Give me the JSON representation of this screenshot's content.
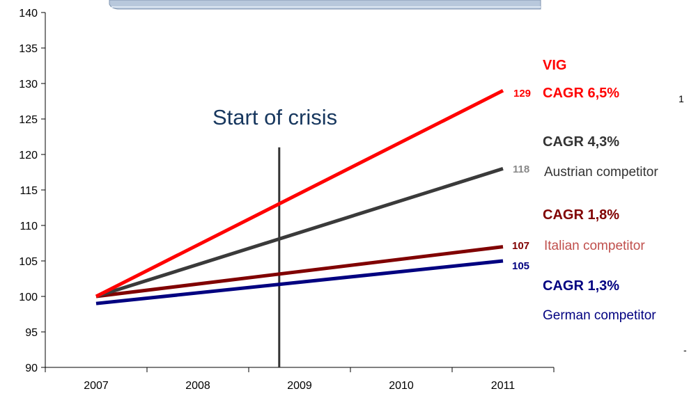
{
  "chart_data": {
    "type": "line",
    "categories": [
      "2007",
      "2008",
      "2009",
      "2010",
      "2011"
    ],
    "ylim": [
      90,
      140
    ],
    "yticks": [
      90,
      95,
      100,
      105,
      110,
      115,
      120,
      125,
      130,
      135,
      140
    ],
    "series": [
      {
        "name": "VIG",
        "color": "#ff0000",
        "start": 100,
        "end": 129,
        "end_label": "129",
        "cagr": "CAGR 6,5%"
      },
      {
        "name": "Austrian competitor",
        "color": "#3a3a3a",
        "label_color": "#888888",
        "name_color": "#333333",
        "start": 100,
        "end": 118,
        "end_label": "118",
        "cagr": "CAGR 4,3%"
      },
      {
        "name": "Italian competitor",
        "color": "#800000",
        "name_color": "#c0504d",
        "start": 100,
        "end": 107,
        "end_label": "107",
        "cagr": "CAGR 1,8%"
      },
      {
        "name": "German competitor",
        "color": "#000080",
        "start": 99,
        "end": 105,
        "end_label": "105",
        "cagr": "CAGR 1,3%"
      }
    ],
    "annotation": {
      "text": "Start of crisis",
      "x": 2008.8
    },
    "stray_marks": [
      "1",
      "-"
    ]
  }
}
